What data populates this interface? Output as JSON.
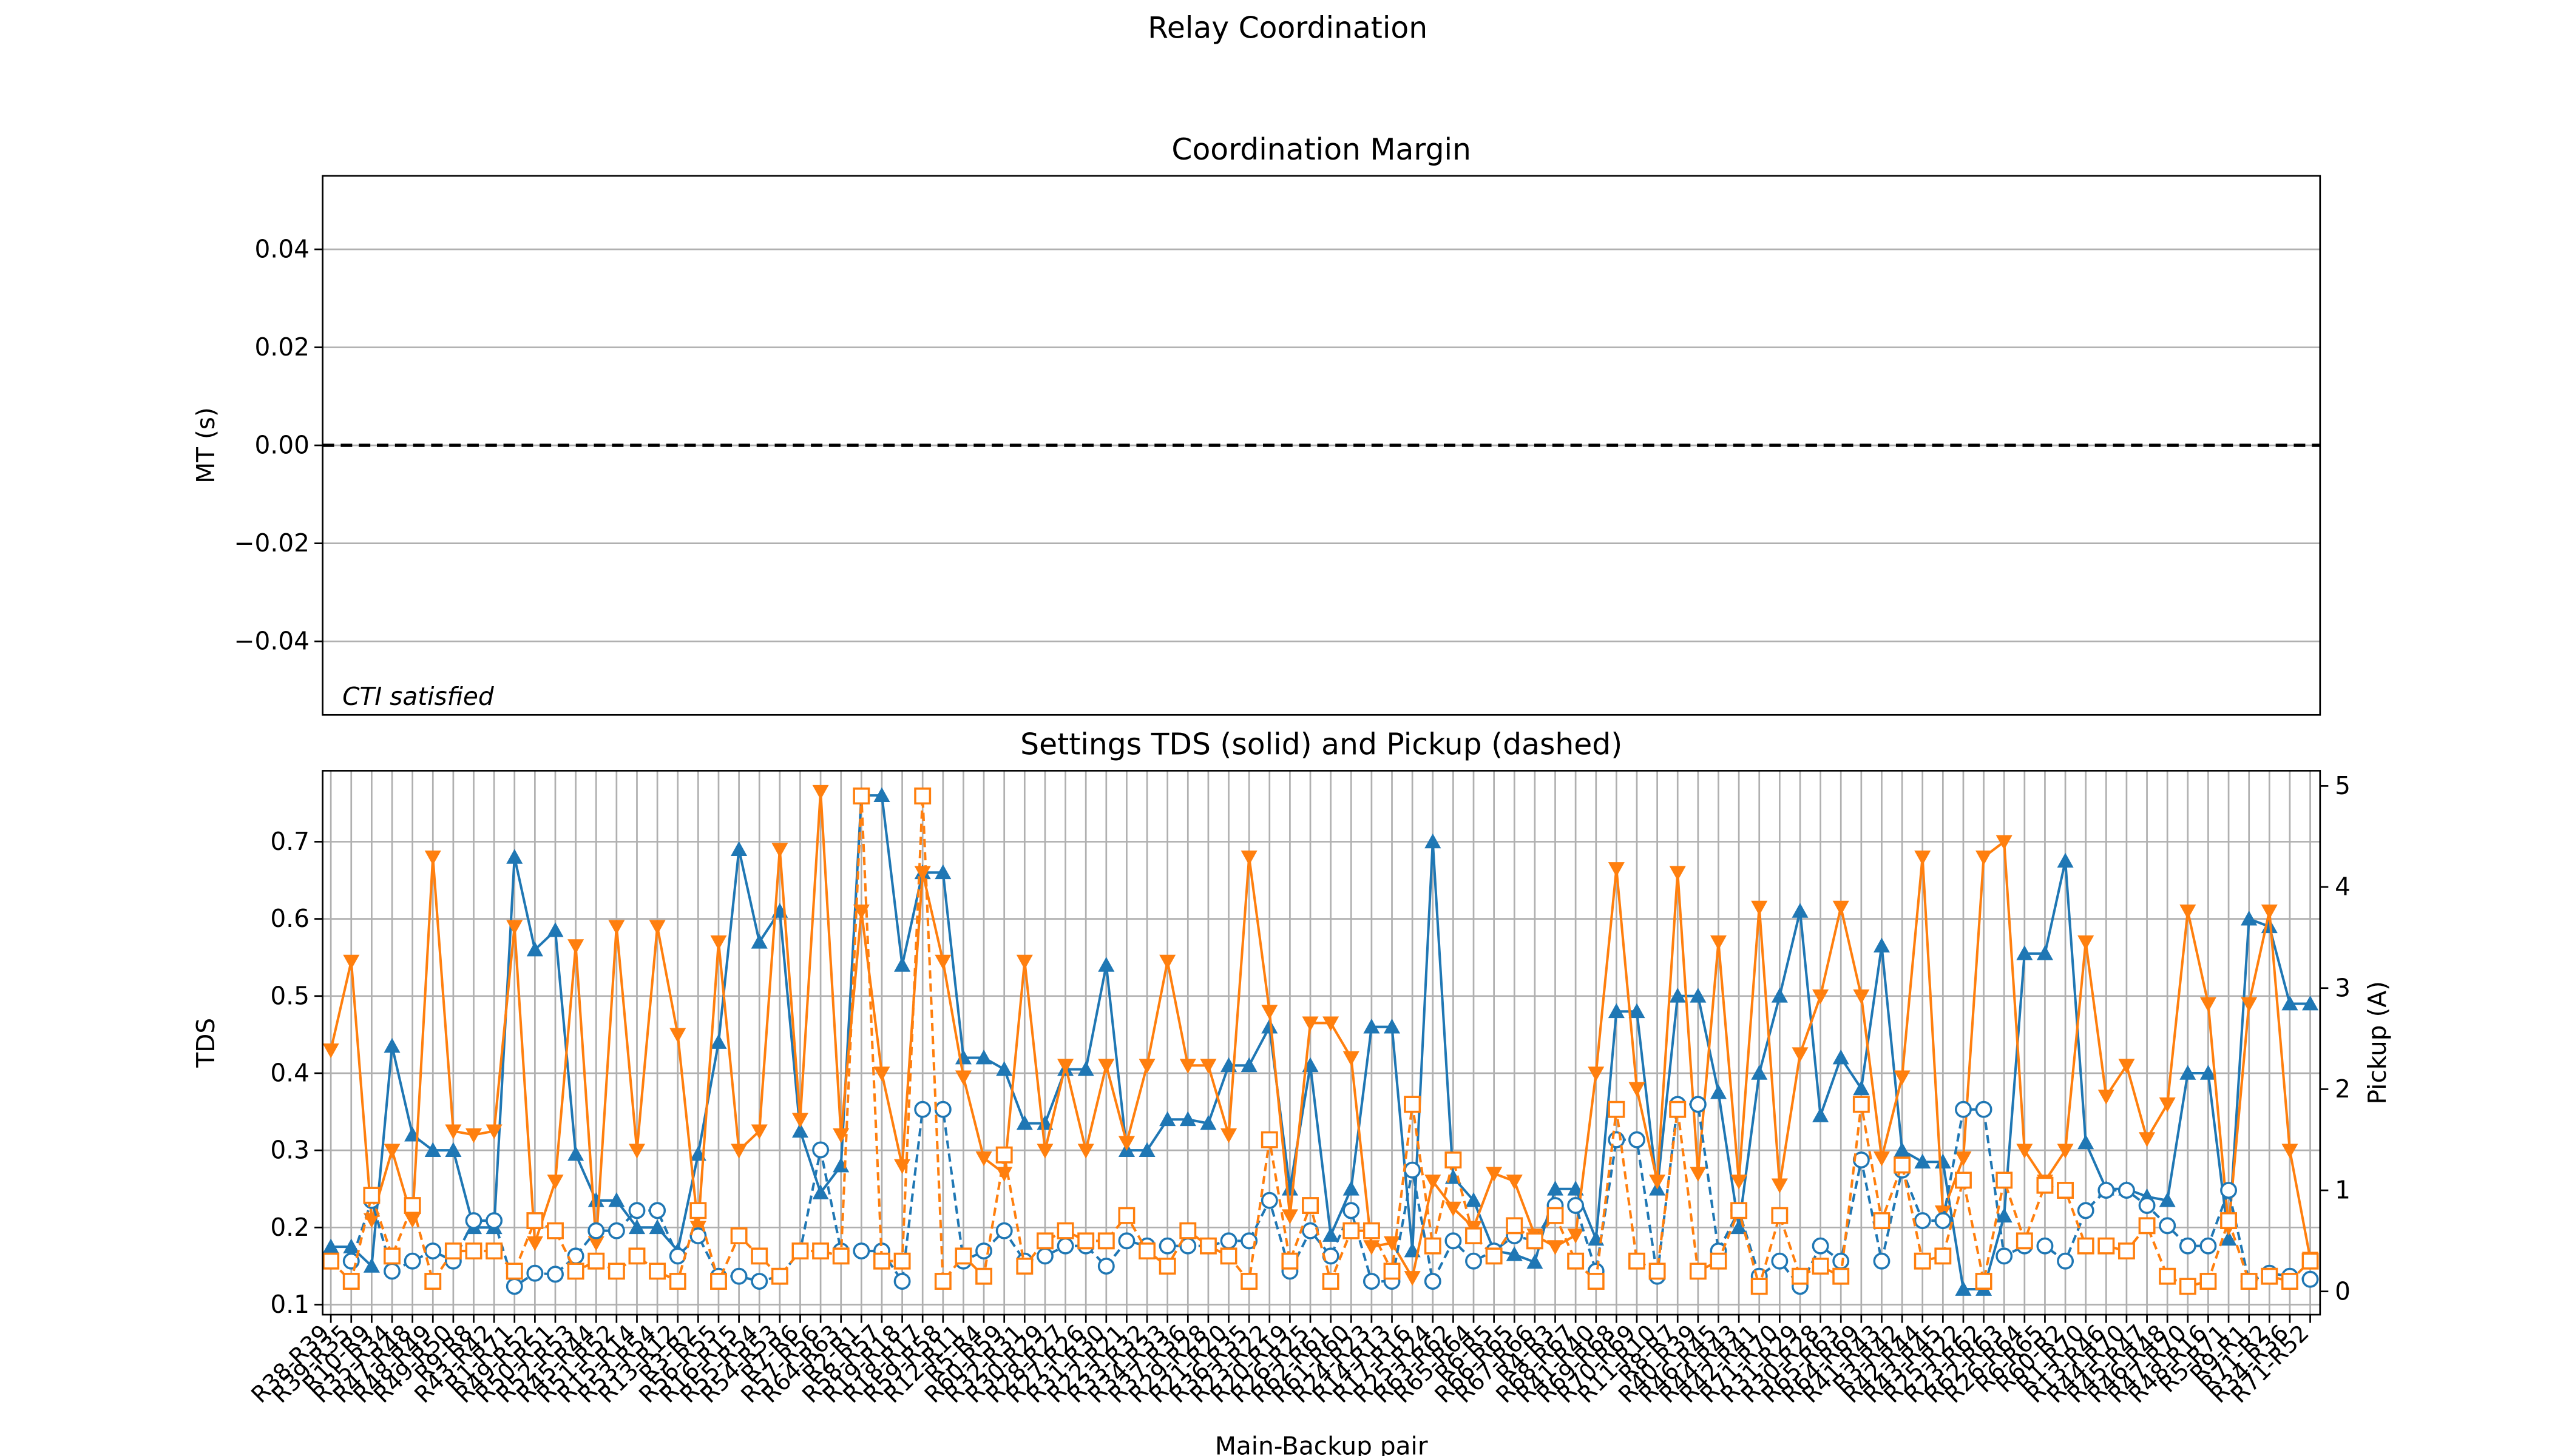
{
  "title": "Relay Coordination",
  "chart_data": [
    {
      "type": "line",
      "title": "Coordination Margin",
      "ylabel": "MT (s)",
      "ylim": [
        -0.055,
        0.055
      ],
      "yticks": [
        {
          "value": -0.04,
          "label": "−0.04"
        },
        {
          "value": -0.02,
          "label": "−0.02"
        },
        {
          "value": 0,
          "label": "0.00"
        },
        0.02,
        0.04
      ],
      "hline": 0,
      "grid": true,
      "annotation": "CTI satisfied",
      "series": []
    },
    {
      "type": "line",
      "title": "Settings TDS (solid) and Pickup (dashed)",
      "xlabel": "Main-Backup pair",
      "ylabel": "TDS",
      "y2label": "Pickup (A)",
      "ylim": [
        0.087,
        0.792
      ],
      "yticks": [
        0.1,
        0.2,
        0.3,
        0.4,
        0.5,
        0.6,
        0.7
      ],
      "y2lim": [
        -0.23,
        5.15
      ],
      "y2ticks": [
        0,
        1,
        2,
        3,
        4,
        5
      ],
      "grid": true,
      "categories": [
        "R38-R39",
        "R39-R35",
        "R10-R9",
        "R35-R34",
        "R47-R48",
        "R48-R49",
        "R49-R50",
        "R9-R8",
        "R43-R42",
        "R1-R71",
        "R49-R52",
        "R50-R51",
        "R52-R53",
        "R45-R44",
        "R51-R52",
        "R15-R14",
        "R53-R54",
        "R13-R12",
        "R3-R2",
        "R56-R55",
        "R16-R15",
        "R55-R54",
        "R54-R53",
        "R7-R6",
        "R57-R56",
        "R64-R63",
        "R2-R1",
        "R58-R57",
        "R19-R18",
        "R18-R17",
        "R59-R58",
        "R12-R11",
        "R5-R4",
        "R60-R59",
        "R32-R31",
        "R30-R29",
        "R28-R27",
        "R27-R26",
        "R31-R30",
        "R22-R21",
        "R33-R32",
        "R34-R33",
        "R37-R36",
        "R29-R28",
        "R21-R20",
        "R36-R35",
        "R23-R22",
        "R20-R19",
        "R26-R25",
        "R62-R61",
        "R61-R60",
        "R24-R23",
        "R14-R13",
        "R17-R16",
        "R25-R24",
        "R63-R62",
        "R65-R64",
        "R6-R5",
        "R66-R65",
        "R67-R66",
        "R4-R3",
        "R68-R67",
        "R41-R40",
        "R69-R68",
        "R70-R69",
        "R11-R10",
        "R8-R7",
        "R40-R39",
        "R46-R45",
        "R44-R43",
        "R42-R41",
        "R71-R70",
        "R31-R29",
        "R30-R28",
        "R65-R63",
        "R64-R69",
        "R41-R43",
        "R3-R42",
        "R42-R44",
        "R43-R45",
        "R25-R22",
        "R23-R62",
        "R62-R63",
        "R26-R64",
        "R6-R65",
        "R60-R2",
        "R1-R70",
        "R13-R46",
        "R44-R70",
        "R45-R47",
        "R46-R48",
        "R47-R70",
        "R48-R16",
        "R5-R71",
        "R9-R1",
        "R71-R2",
        "R34-R36",
        "R71-R52"
      ],
      "series": [
        {
          "color": "#1f77b4",
          "marker": "triangle-up",
          "dash": false,
          "axis": "y",
          "values": [
            0.175,
            0.175,
            0.15,
            0.435,
            0.32,
            0.3,
            0.3,
            0.2,
            0.2,
            0.68,
            0.56,
            0.585,
            0.295,
            0.235,
            0.235,
            0.2,
            0.2,
            0.17,
            0.295,
            0.44,
            0.69,
            0.57,
            0.61,
            0.325,
            0.245,
            0.28,
            0.76,
            0.76,
            0.54,
            0.66,
            0.66,
            0.42,
            0.42,
            0.405,
            0.335,
            0.335,
            0.405,
            0.405,
            0.54,
            0.3,
            0.3,
            0.34,
            0.34,
            0.335,
            0.41,
            0.41,
            0.46,
            0.25,
            0.41,
            0.19,
            0.25,
            0.46,
            0.46,
            0.17,
            0.7,
            0.265,
            0.235,
            0.17,
            0.165,
            0.155,
            0.25,
            0.25,
            0.185,
            0.48,
            0.48,
            0.25,
            0.5,
            0.5,
            0.375,
            0.2,
            0.4,
            0.5,
            0.61,
            0.345,
            0.42,
            0.38,
            0.565,
            0.3,
            0.285,
            0.285,
            0.12,
            0.12,
            0.215,
            0.555,
            0.555,
            0.675,
            0.31,
            0.25,
            0.25,
            0.24,
            0.235,
            0.4,
            0.4,
            0.185,
            0.6,
            0.59,
            0.49,
            0.49
          ]
        },
        {
          "color": "#ff7f0e",
          "marker": "triangle-down",
          "dash": false,
          "axis": "y",
          "values": [
            0.43,
            0.545,
            0.21,
            0.3,
            0.21,
            0.68,
            0.325,
            0.32,
            0.325,
            0.59,
            0.18,
            0.26,
            0.565,
            0.18,
            0.59,
            0.3,
            0.59,
            0.45,
            0.2,
            0.57,
            0.3,
            0.325,
            0.69,
            0.34,
            0.765,
            0.32,
            0.61,
            0.4,
            0.28,
            0.66,
            0.545,
            0.395,
            0.29,
            0.27,
            0.545,
            0.3,
            0.41,
            0.3,
            0.41,
            0.31,
            0.41,
            0.545,
            0.41,
            0.41,
            0.32,
            0.68,
            0.48,
            0.215,
            0.465,
            0.465,
            0.42,
            0.175,
            0.18,
            0.135,
            0.26,
            0.225,
            0.2,
            0.27,
            0.26,
            0.19,
            0.175,
            0.19,
            0.4,
            0.665,
            0.38,
            0.26,
            0.66,
            0.27,
            0.57,
            0.26,
            0.615,
            0.255,
            0.425,
            0.5,
            0.615,
            0.5,
            0.29,
            0.395,
            0.68,
            0.22,
            0.29,
            0.68,
            0.7,
            0.3,
            0.26,
            0.3,
            0.57,
            0.37,
            0.41,
            0.315,
            0.36,
            0.61,
            0.49,
            0.2,
            0.49,
            0.61,
            0.3,
            0.16
          ]
        },
        {
          "color": "#1f77b4",
          "marker": "circle",
          "dash": true,
          "axis": "y2",
          "values": [
            0.3,
            0.3,
            0.9,
            0.2,
            0.3,
            0.4,
            0.3,
            0.7,
            0.7,
            0.05,
            0.18,
            0.17,
            0.35,
            0.6,
            0.6,
            0.8,
            0.8,
            0.35,
            0.55,
            0.15,
            0.15,
            0.1,
            0.15,
            0.4,
            1.4,
            0.4,
            0.4,
            0.4,
            0.1,
            1.8,
            1.8,
            0.3,
            0.4,
            0.6,
            0.3,
            0.35,
            0.45,
            0.45,
            0.25,
            0.5,
            0.45,
            0.45,
            0.45,
            0.45,
            0.5,
            0.5,
            0.9,
            0.2,
            0.6,
            0.35,
            0.8,
            0.1,
            0.1,
            1.2,
            0.1,
            0.5,
            0.3,
            0.4,
            0.55,
            0.5,
            0.85,
            0.85,
            0.2,
            1.5,
            1.5,
            0.15,
            1.85,
            1.85,
            0.4,
            0.8,
            0.15,
            0.3,
            0.05,
            0.45,
            0.3,
            1.3,
            0.3,
            1.2,
            0.7,
            0.7,
            1.8,
            1.8,
            0.35,
            0.45,
            0.45,
            0.3,
            0.8,
            1.0,
            1.0,
            0.85,
            0.65,
            0.45,
            0.45,
            1.0,
            0.1,
            0.18,
            0.15,
            0.12
          ]
        },
        {
          "color": "#ff7f0e",
          "marker": "square",
          "dash": true,
          "axis": "y2",
          "values": [
            0.3,
            0.1,
            0.95,
            0.35,
            0.85,
            0.1,
            0.4,
            0.4,
            0.4,
            0.2,
            0.7,
            0.6,
            0.2,
            0.3,
            0.2,
            0.35,
            0.2,
            0.1,
            0.8,
            0.1,
            0.55,
            0.35,
            0.15,
            0.4,
            0.4,
            0.35,
            4.9,
            0.3,
            0.3,
            4.9,
            0.1,
            0.35,
            0.15,
            1.35,
            0.25,
            0.5,
            0.6,
            0.5,
            0.5,
            0.75,
            0.4,
            0.25,
            0.6,
            0.45,
            0.35,
            0.1,
            1.5,
            0.3,
            0.85,
            0.1,
            0.6,
            0.6,
            0.2,
            1.85,
            0.45,
            1.3,
            0.55,
            0.35,
            0.65,
            0.5,
            0.75,
            0.3,
            0.1,
            1.8,
            0.3,
            0.2,
            1.8,
            0.2,
            0.3,
            0.8,
            0.05,
            0.75,
            0.15,
            0.25,
            0.15,
            1.85,
            0.7,
            1.25,
            0.3,
            0.35,
            1.1,
            0.1,
            1.1,
            0.5,
            1.05,
            1.0,
            0.45,
            0.45,
            0.4,
            0.65,
            0.15,
            0.05,
            0.1,
            0.7,
            0.1,
            0.15,
            0.1,
            0.3
          ]
        }
      ]
    }
  ]
}
